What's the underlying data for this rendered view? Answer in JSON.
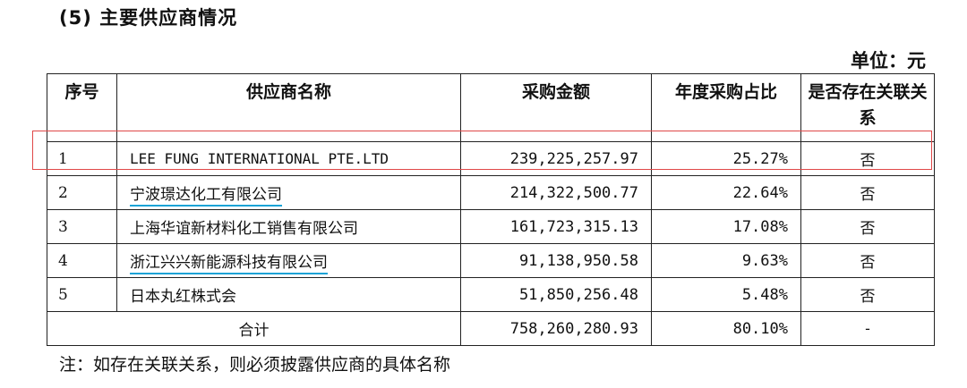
{
  "heading": "(5) 主要供应商情况",
  "unit": "单位：元",
  "headers": [
    "序号",
    "供应商名称",
    "采购金额",
    "年度采购占比",
    "是否存在关联关系"
  ],
  "rows": [
    {
      "idx": "1",
      "name": "LEE FUNG INTERNATIONAL PTE.LTD",
      "amount": "239,225,257.97",
      "share": "25.27%",
      "related": "否"
    },
    {
      "idx": "2",
      "name": "宁波璟达化工有限公司",
      "amount": "214,322,500.77",
      "share": "22.64%",
      "related": "否"
    },
    {
      "idx": "3",
      "name": "上海华谊新材料化工销售有限公司",
      "amount": "161,723,315.13",
      "share": "17.08%",
      "related": "否"
    },
    {
      "idx": "4",
      "name": "浙江兴兴新能源科技有限公司",
      "amount": "91,138,950.58",
      "share": "9.63%",
      "related": "否"
    },
    {
      "idx": "5",
      "name": "日本丸红株式会",
      "amount": "51,850,256.48",
      "share": "5.48%",
      "related": "否"
    }
  ],
  "total": {
    "label": "合计",
    "amount": "758,260,280.93",
    "share": "80.10%",
    "related": "-"
  },
  "note": "注：如存在关联关系，则必须披露供应商的具体名称",
  "colors": {
    "highlight_box": "#e04848",
    "underline": "#1aa3d6"
  }
}
